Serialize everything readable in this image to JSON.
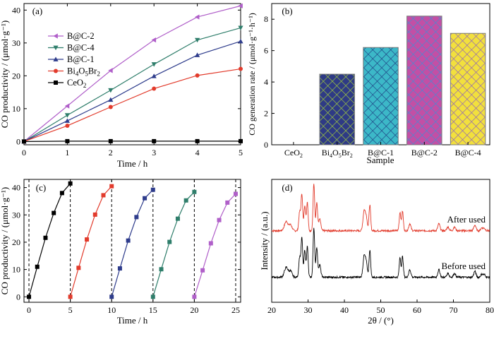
{
  "chart_data": [
    {
      "panel": "(a)",
      "type": "line",
      "xlabel": "Time / h",
      "ylabel": "CO productivity / (μmol·g⁻¹)",
      "xlim": [
        0,
        5
      ],
      "ylim": [
        -1,
        42
      ],
      "xticks": [
        0,
        1,
        2,
        3,
        4,
        5
      ],
      "yticks": [
        0,
        10,
        20,
        30,
        40
      ],
      "legend_position": "top-left",
      "x": [
        0,
        1,
        2,
        3,
        4,
        5
      ],
      "series": [
        {
          "name": "B@C-2",
          "color": "#b05fc9",
          "marker": "triangle-left",
          "values": [
            0,
            10.8,
            21.6,
            30.9,
            37.9,
            41.3
          ]
        },
        {
          "name": "B@C-4",
          "color": "#2f7e6b",
          "marker": "triangle-down",
          "values": [
            0,
            8.0,
            15.6,
            23.5,
            30.9,
            34.6
          ]
        },
        {
          "name": "B@C-1",
          "color": "#2e3c8c",
          "marker": "triangle-up",
          "values": [
            0,
            6.3,
            12.7,
            19.9,
            26.3,
            30.5
          ]
        },
        {
          "name_parts": [
            "Bi",
            "4",
            "O",
            "5",
            "Br",
            "2"
          ],
          "color": "#e23b2c",
          "marker": "circle",
          "values": [
            0,
            4.8,
            10.5,
            16.1,
            20.1,
            22.1
          ]
        },
        {
          "name_parts": [
            "CeO",
            "2"
          ],
          "color": "#000000",
          "marker": "square",
          "values": [
            0,
            0.1,
            0.1,
            0.1,
            0.1,
            0.1
          ]
        }
      ]
    },
    {
      "panel": "(b)",
      "type": "bar",
      "xlabel": "Sample",
      "ylabel": "CO generation rate / (μmol·g⁻¹·h⁻¹)",
      "ylim": [
        0,
        9
      ],
      "yticks": [
        0,
        2,
        4,
        6,
        8
      ],
      "categories": [
        [
          "CeO",
          "2"
        ],
        [
          "Bi",
          "4",
          "O",
          "5",
          "Br",
          "2"
        ],
        [
          "B@C-1"
        ],
        [
          "B@C-2"
        ],
        [
          "B@C-4"
        ]
      ],
      "values": [
        0,
        4.5,
        6.2,
        8.2,
        7.1
      ],
      "colors": [
        "#ffffff",
        "#2e3a85",
        "#3cb8c8",
        "#c34fa5",
        "#f2e03d"
      ],
      "hatch_colors": [
        "#ffffff",
        "#a6cf3a",
        "#1d3f82",
        "#3e8fd6",
        "#8a5fbf"
      ]
    },
    {
      "panel": "(c)",
      "type": "line",
      "xlabel": "Time / h",
      "ylabel": "CO productivity / (μmol·g⁻¹)",
      "xlim": [
        -0.6,
        25.6
      ],
      "ylim": [
        -2,
        43
      ],
      "xticks": [
        0,
        5,
        10,
        15,
        20,
        25
      ],
      "yticks": [
        0,
        10,
        20,
        30,
        40
      ],
      "cycle_boundaries": [
        0,
        5,
        10,
        15,
        20,
        25
      ],
      "series": [
        {
          "cycle": 1,
          "color": "#000000",
          "x": [
            0,
            1,
            2,
            3,
            4,
            5
          ],
          "values": [
            0,
            11.0,
            21.6,
            30.7,
            38.0,
            41.5
          ]
        },
        {
          "cycle": 2,
          "color": "#e23b2c",
          "x": [
            5,
            6,
            7,
            8,
            9,
            10
          ],
          "values": [
            0,
            10.6,
            21.0,
            30.1,
            37.2,
            40.5
          ]
        },
        {
          "cycle": 3,
          "color": "#2e3c8c",
          "x": [
            10,
            11,
            12,
            13,
            14,
            15
          ],
          "values": [
            0,
            10.4,
            20.6,
            29.2,
            36.1,
            39.2
          ]
        },
        {
          "cycle": 4,
          "color": "#2f7e6b",
          "x": [
            15,
            16,
            17,
            18,
            19,
            20
          ],
          "values": [
            0,
            10.1,
            20.1,
            28.6,
            35.3,
            38.4
          ]
        },
        {
          "cycle": 5,
          "color": "#b05fc9",
          "x": [
            20,
            21,
            22,
            23,
            24,
            25
          ],
          "values": [
            0,
            9.7,
            19.6,
            28.1,
            34.5,
            37.7
          ]
        }
      ]
    },
    {
      "panel": "(d)",
      "type": "line",
      "xlabel": "2θ / (°)",
      "ylabel": "Intensity / (a.u.)",
      "xlim": [
        20,
        80
      ],
      "xticks": [
        20,
        30,
        40,
        50,
        60,
        70,
        80
      ],
      "series": [
        {
          "name": "After used",
          "color": "#e23b2c"
        },
        {
          "name": "Before used",
          "color": "#000000"
        }
      ],
      "baseline": 0.05,
      "peaks": [
        [
          24.0,
          0.2,
          0.5
        ],
        [
          25.2,
          0.12,
          0.4
        ],
        [
          27.7,
          0.4,
          0.25
        ],
        [
          28.3,
          0.78,
          0.22
        ],
        [
          29.1,
          0.55,
          0.22
        ],
        [
          29.8,
          0.62,
          0.22
        ],
        [
          31.6,
          1.0,
          0.22
        ],
        [
          32.4,
          0.6,
          0.22
        ],
        [
          33.2,
          0.25,
          0.3
        ],
        [
          45.4,
          0.4,
          0.3
        ],
        [
          46.0,
          0.3,
          0.3
        ],
        [
          47.0,
          0.55,
          0.22
        ],
        [
          55.3,
          0.4,
          0.22
        ],
        [
          56.0,
          0.42,
          0.22
        ],
        [
          58.0,
          0.15,
          0.3
        ],
        [
          66.0,
          0.15,
          0.3
        ],
        [
          68.5,
          0.08,
          0.3
        ],
        [
          70.3,
          0.08,
          0.3
        ],
        [
          75.9,
          0.12,
          0.3
        ],
        [
          77.8,
          0.06,
          0.3
        ],
        [
          78.5,
          0.05,
          0.3
        ]
      ]
    }
  ]
}
